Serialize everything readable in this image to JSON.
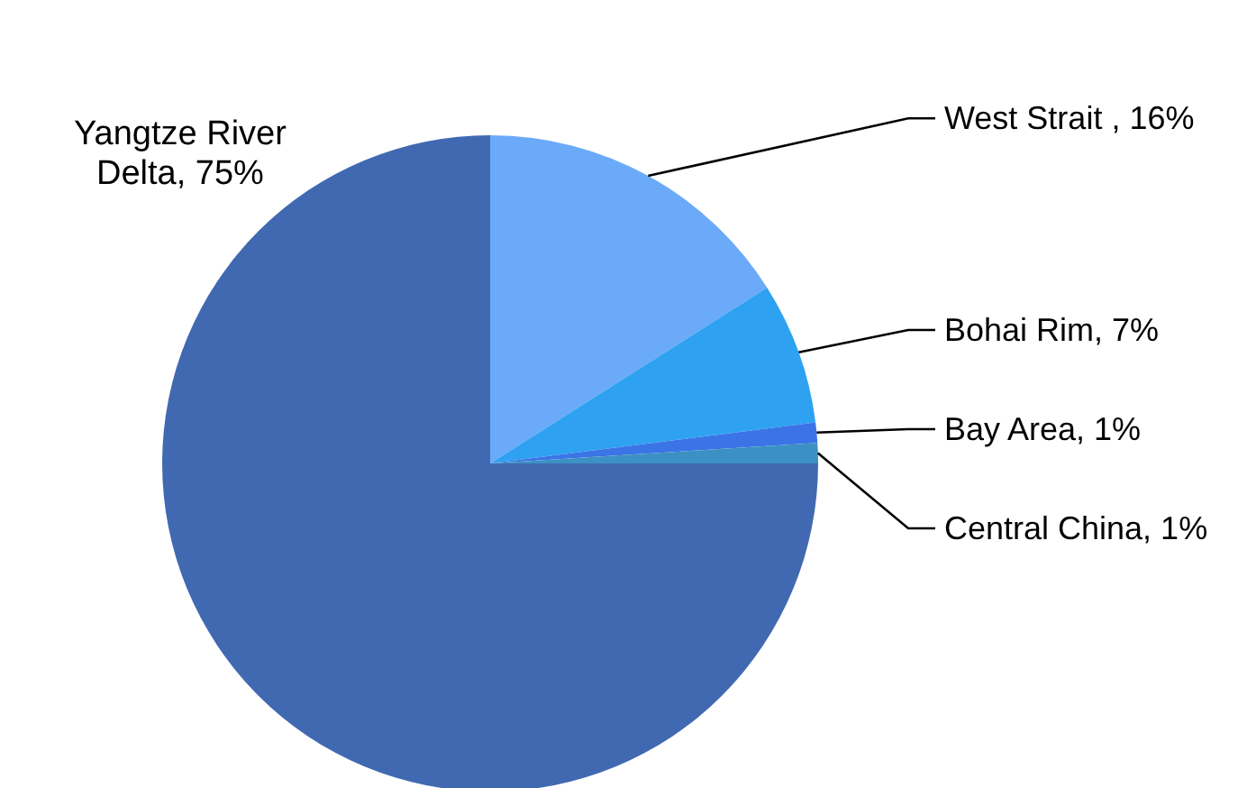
{
  "chart_data": {
    "type": "pie",
    "categories": [
      "West Strait ",
      "Bohai Rim",
      "Bay Area",
      "Central China",
      "Yangtze River Delta"
    ],
    "values": [
      16,
      7,
      1,
      1,
      75
    ],
    "value_labels": [
      "16%",
      "7%",
      "1%",
      "1%",
      "75%"
    ],
    "colors": [
      "#6aaaf8",
      "#2ea2f0",
      "#3b74e6",
      "#3c91c4",
      "#4169b1"
    ]
  }
}
